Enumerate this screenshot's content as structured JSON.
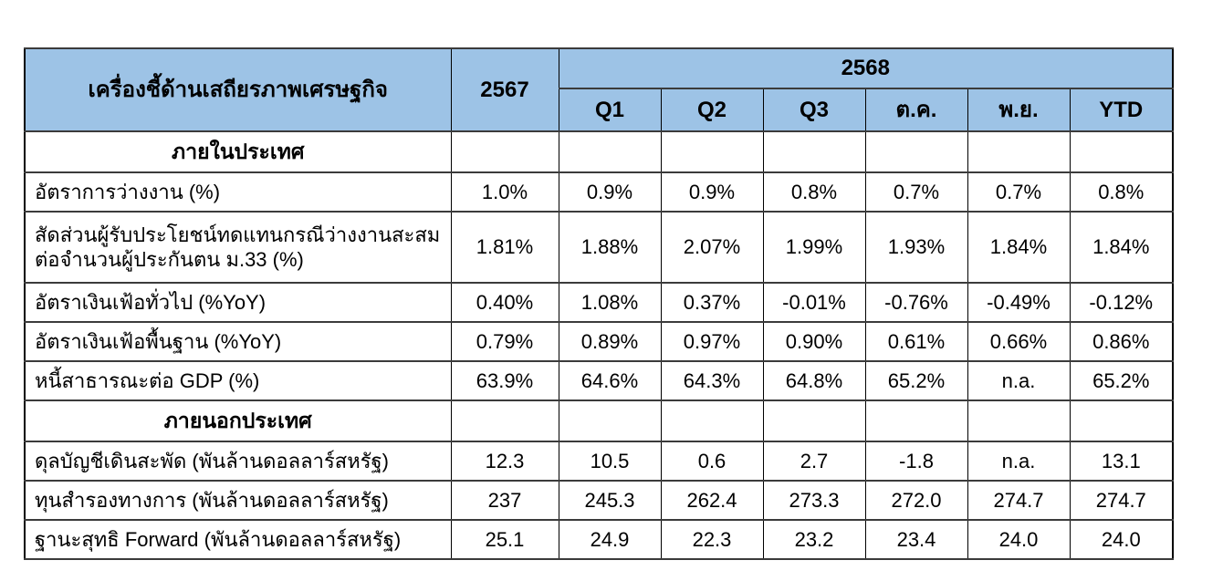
{
  "colors": {
    "background": "#FFFFFF",
    "header_bg": "#9DC3E6",
    "grid_vertical": "#000000",
    "grid_horizontal": "#3B3B3B",
    "text": "#000000"
  },
  "table": {
    "corner_header": "เครื่องชี้ด้านเสถียรภาพเศรษฐกิจ",
    "year_prev": "2567",
    "year_current": "2568",
    "sub_columns": [
      "Q1",
      "Q2",
      "Q3",
      "ต.ค.",
      "พ.ย.",
      "YTD"
    ],
    "sections": [
      {
        "title": "ภายในประเทศ",
        "rows": [
          {
            "label": "อัตราการว่างงาน (%)",
            "y2567": "1.0%",
            "values": [
              "0.9%",
              "0.9%",
              "0.8%",
              "0.7%",
              "0.7%",
              "0.8%"
            ]
          },
          {
            "label": "สัดส่วนผู้รับประโยชน์ทดแทนกรณีว่างงานสะสม\nต่อจำนวนผู้ประกันตน ม.33 (%)",
            "y2567": "1.81%",
            "values": [
              "1.88%",
              "2.07%",
              "1.99%",
              "1.93%",
              "1.84%",
              "1.84%"
            ]
          },
          {
            "label": "อัตราเงินเฟ้อทั่วไป (%YoY)",
            "y2567": "0.40%",
            "values": [
              "1.08%",
              "0.37%",
              "-0.01%",
              "-0.76%",
              "-0.49%",
              "-0.12%"
            ]
          },
          {
            "label": "อัตราเงินเฟ้อพื้นฐาน (%YoY)",
            "y2567": "0.79%",
            "values": [
              "0.89%",
              "0.97%",
              "0.90%",
              "0.61%",
              "0.66%",
              "0.86%"
            ]
          },
          {
            "label": "หนี้สาธารณะต่อ GDP (%)",
            "y2567": "63.9%",
            "values": [
              "64.6%",
              "64.3%",
              "64.8%",
              "65.2%",
              "n.a.",
              "65.2%"
            ]
          }
        ]
      },
      {
        "title": "ภายนอกประเทศ",
        "rows": [
          {
            "label": "ดุลบัญชีเดินสะพัด (พันล้านดอลลาร์สหรัฐ)",
            "y2567": "12.3",
            "values": [
              "10.5",
              "0.6",
              "2.7",
              "-1.8",
              "n.a.",
              "13.1"
            ]
          },
          {
            "label": "ทุนสำรองทางการ (พันล้านดอลลาร์สหรัฐ)",
            "y2567": "237",
            "values": [
              "245.3",
              "262.4",
              "273.3",
              "272.0",
              "274.7",
              "274.7"
            ]
          },
          {
            "label": "ฐานะสุทธิ Forward (พันล้านดอลลาร์สหรัฐ)",
            "y2567": "25.1",
            "values": [
              "24.9",
              "22.3",
              "23.2",
              "23.4",
              "24.0",
              "24.0"
            ]
          }
        ]
      }
    ]
  },
  "chart_data": {
    "type": "table",
    "title": "เครื่องชี้ด้านเสถียรภาพเศรษฐกิจ",
    "columns": [
      "2567",
      "Q1 2568",
      "Q2 2568",
      "Q3 2568",
      "ต.ค. 2568",
      "พ.ย. 2568",
      "YTD 2568"
    ],
    "rows": [
      {
        "group": "ภายในประเทศ",
        "indicator": "อัตราการว่างงาน (%)",
        "values": [
          1.0,
          0.9,
          0.9,
          0.8,
          0.7,
          0.7,
          0.8
        ]
      },
      {
        "group": "ภายในประเทศ",
        "indicator": "สัดส่วนผู้รับประโยชน์ทดแทนกรณีว่างงานสะสมต่อจำนวนผู้ประกันตน ม.33 (%)",
        "values": [
          1.81,
          1.88,
          2.07,
          1.99,
          1.93,
          1.84,
          1.84
        ]
      },
      {
        "group": "ภายในประเทศ",
        "indicator": "อัตราเงินเฟ้อทั่วไป (%YoY)",
        "values": [
          0.4,
          1.08,
          0.37,
          -0.01,
          -0.76,
          -0.49,
          -0.12
        ]
      },
      {
        "group": "ภายในประเทศ",
        "indicator": "อัตราเงินเฟ้อพื้นฐาน (%YoY)",
        "values": [
          0.79,
          0.89,
          0.97,
          0.9,
          0.61,
          0.66,
          0.86
        ]
      },
      {
        "group": "ภายในประเทศ",
        "indicator": "หนี้สาธารณะต่อ GDP (%)",
        "values": [
          63.9,
          64.6,
          64.3,
          64.8,
          65.2,
          null,
          65.2
        ]
      },
      {
        "group": "ภายนอกประเทศ",
        "indicator": "ดุลบัญชีเดินสะพัด (พันล้านดอลลาร์สหรัฐ)",
        "values": [
          12.3,
          10.5,
          0.6,
          2.7,
          -1.8,
          null,
          13.1
        ]
      },
      {
        "group": "ภายนอกประเทศ",
        "indicator": "ทุนสำรองทางการ (พันล้านดอลลาร์สหรัฐ)",
        "values": [
          237,
          245.3,
          262.4,
          273.3,
          272.0,
          274.7,
          274.7
        ]
      },
      {
        "group": "ภายนอกประเทศ",
        "indicator": "ฐานะสุทธิ Forward (พันล้านดอลลาร์สหรัฐ)",
        "values": [
          25.1,
          24.9,
          22.3,
          23.2,
          23.4,
          24.0,
          24.0
        ]
      }
    ],
    "na_text": "n.a."
  }
}
